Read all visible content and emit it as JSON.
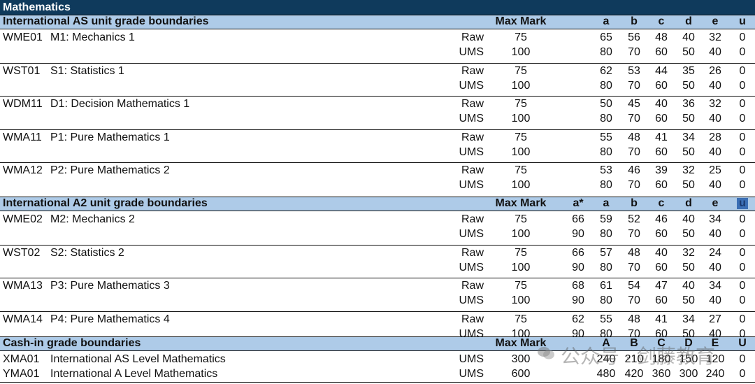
{
  "title": "Mathematics",
  "as_section": {
    "label": "International AS unit grade boundaries",
    "max_mark": "Max Mark",
    "grades": [
      "a",
      "b",
      "c",
      "d",
      "e",
      "u"
    ],
    "units": [
      {
        "code": "WME01",
        "name": "M1: Mechanics 1",
        "raw": {
          "type": "Raw",
          "max": "75",
          "g": [
            "65",
            "56",
            "48",
            "40",
            "32",
            "0"
          ]
        },
        "ums": {
          "type": "UMS",
          "max": "100",
          "g": [
            "80",
            "70",
            "60",
            "50",
            "40",
            "0"
          ]
        }
      },
      {
        "code": "WST01",
        "name": "S1: Statistics 1",
        "raw": {
          "type": "Raw",
          "max": "75",
          "g": [
            "62",
            "53",
            "44",
            "35",
            "26",
            "0"
          ]
        },
        "ums": {
          "type": "UMS",
          "max": "100",
          "g": [
            "80",
            "70",
            "60",
            "50",
            "40",
            "0"
          ]
        }
      },
      {
        "code": "WDM11",
        "name": "D1: Decision Mathematics 1",
        "raw": {
          "type": "Raw",
          "max": "75",
          "g": [
            "50",
            "45",
            "40",
            "36",
            "32",
            "0"
          ]
        },
        "ums": {
          "type": "UMS",
          "max": "100",
          "g": [
            "80",
            "70",
            "60",
            "50",
            "40",
            "0"
          ]
        }
      },
      {
        "code": "WMA11",
        "name": "P1: Pure Mathematics 1",
        "raw": {
          "type": "Raw",
          "max": "75",
          "g": [
            "55",
            "48",
            "41",
            "34",
            "28",
            "0"
          ]
        },
        "ums": {
          "type": "UMS",
          "max": "100",
          "g": [
            "80",
            "70",
            "60",
            "50",
            "40",
            "0"
          ]
        }
      },
      {
        "code": "WMA12",
        "name": "P2: Pure Mathematics 2",
        "raw": {
          "type": "Raw",
          "max": "75",
          "g": [
            "53",
            "46",
            "39",
            "32",
            "25",
            "0"
          ]
        },
        "ums": {
          "type": "UMS",
          "max": "100",
          "g": [
            "80",
            "70",
            "60",
            "50",
            "40",
            "0"
          ]
        }
      }
    ]
  },
  "a2_section": {
    "label": "International A2 unit grade boundaries",
    "max_mark": "Max Mark",
    "grades": [
      "a*",
      "a",
      "b",
      "c",
      "d",
      "e",
      "u"
    ],
    "units": [
      {
        "code": "WME02",
        "name": "M2: Mechanics 2",
        "raw": {
          "type": "Raw",
          "max": "75",
          "g": [
            "66",
            "59",
            "52",
            "46",
            "40",
            "34",
            "0"
          ]
        },
        "ums": {
          "type": "UMS",
          "max": "100",
          "g": [
            "90",
            "80",
            "70",
            "60",
            "50",
            "40",
            "0"
          ]
        }
      },
      {
        "code": "WST02",
        "name": "S2: Statistics 2",
        "raw": {
          "type": "Raw",
          "max": "75",
          "g": [
            "66",
            "57",
            "48",
            "40",
            "32",
            "24",
            "0"
          ]
        },
        "ums": {
          "type": "UMS",
          "max": "100",
          "g": [
            "90",
            "80",
            "70",
            "60",
            "50",
            "40",
            "0"
          ]
        }
      },
      {
        "code": "WMA13",
        "name": "P3: Pure Mathematics 3",
        "raw": {
          "type": "Raw",
          "max": "75",
          "g": [
            "68",
            "61",
            "54",
            "47",
            "40",
            "34",
            "0"
          ]
        },
        "ums": {
          "type": "UMS",
          "max": "100",
          "g": [
            "90",
            "80",
            "70",
            "60",
            "50",
            "40",
            "0"
          ]
        }
      },
      {
        "code": "WMA14",
        "name": "P4: Pure Mathematics 4",
        "raw": {
          "type": "Raw",
          "max": "75",
          "g": [
            "62",
            "55",
            "48",
            "41",
            "34",
            "27",
            "0"
          ]
        },
        "ums": {
          "type": "UMS",
          "max": "100",
          "g": [
            "90",
            "80",
            "70",
            "60",
            "50",
            "40",
            "0"
          ]
        }
      }
    ]
  },
  "cashin_section": {
    "label": "Cash-in grade boundaries",
    "max_mark": "Max Mark",
    "grades": [
      "A",
      "B",
      "C",
      "D",
      "E",
      "U"
    ],
    "rows": [
      {
        "code": "XMA01",
        "name": "International AS Level Mathematics",
        "type": "UMS",
        "max": "300",
        "g": [
          "240",
          "210",
          "180",
          "150",
          "120",
          "0"
        ]
      },
      {
        "code": "YMA01",
        "name": "International A Level Mathematics",
        "type": "UMS",
        "max": "600",
        "g": [
          "480",
          "420",
          "360",
          "300",
          "240",
          "0"
        ]
      }
    ]
  },
  "watermark": {
    "text": "公众号 · 剑藤教育",
    "icon": "wechat-icon"
  }
}
